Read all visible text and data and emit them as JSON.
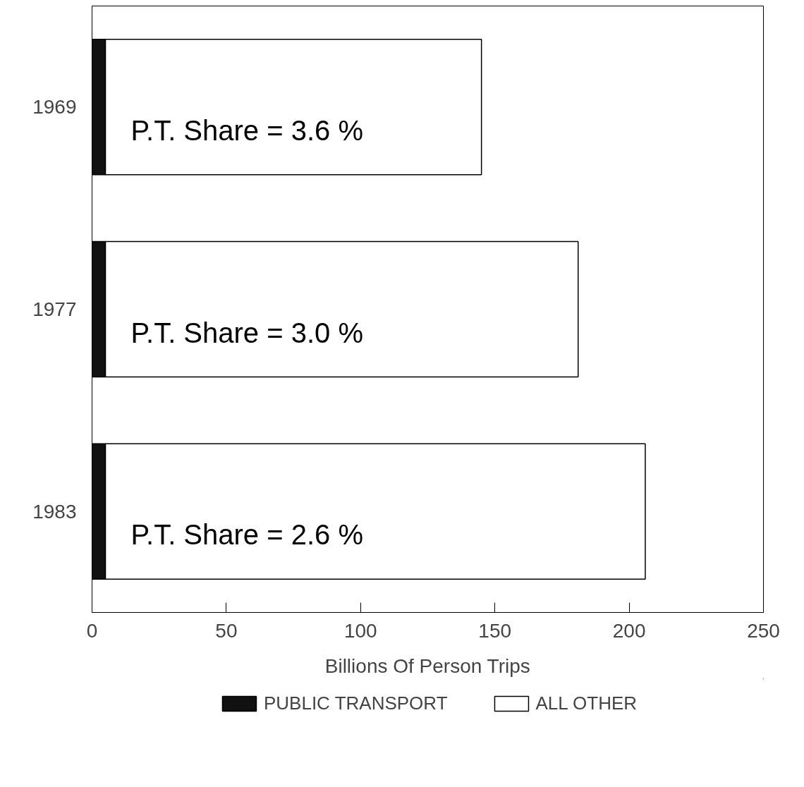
{
  "chart_data": {
    "type": "bar",
    "orientation": "horizontal",
    "stacked": true,
    "categories": [
      "1969",
      "1977",
      "1983"
    ],
    "series": [
      {
        "name": "PUBLIC TRANSPORT",
        "color": "#111111",
        "values": [
          5,
          5,
          5
        ]
      },
      {
        "name": "ALL OTHER",
        "color": "#ffffff",
        "values": [
          140,
          176,
          201
        ]
      }
    ],
    "xlabel": "Billions Of Person Trips",
    "xlim": [
      0,
      250
    ],
    "xticks": [
      0,
      50,
      100,
      150,
      200,
      250
    ],
    "annotations": [
      "P.T. Share = 3.6 %",
      "P.T. Share = 3.0 %",
      "P.T. Share = 2.6 %"
    ],
    "grid": false,
    "legend": "bottom"
  }
}
